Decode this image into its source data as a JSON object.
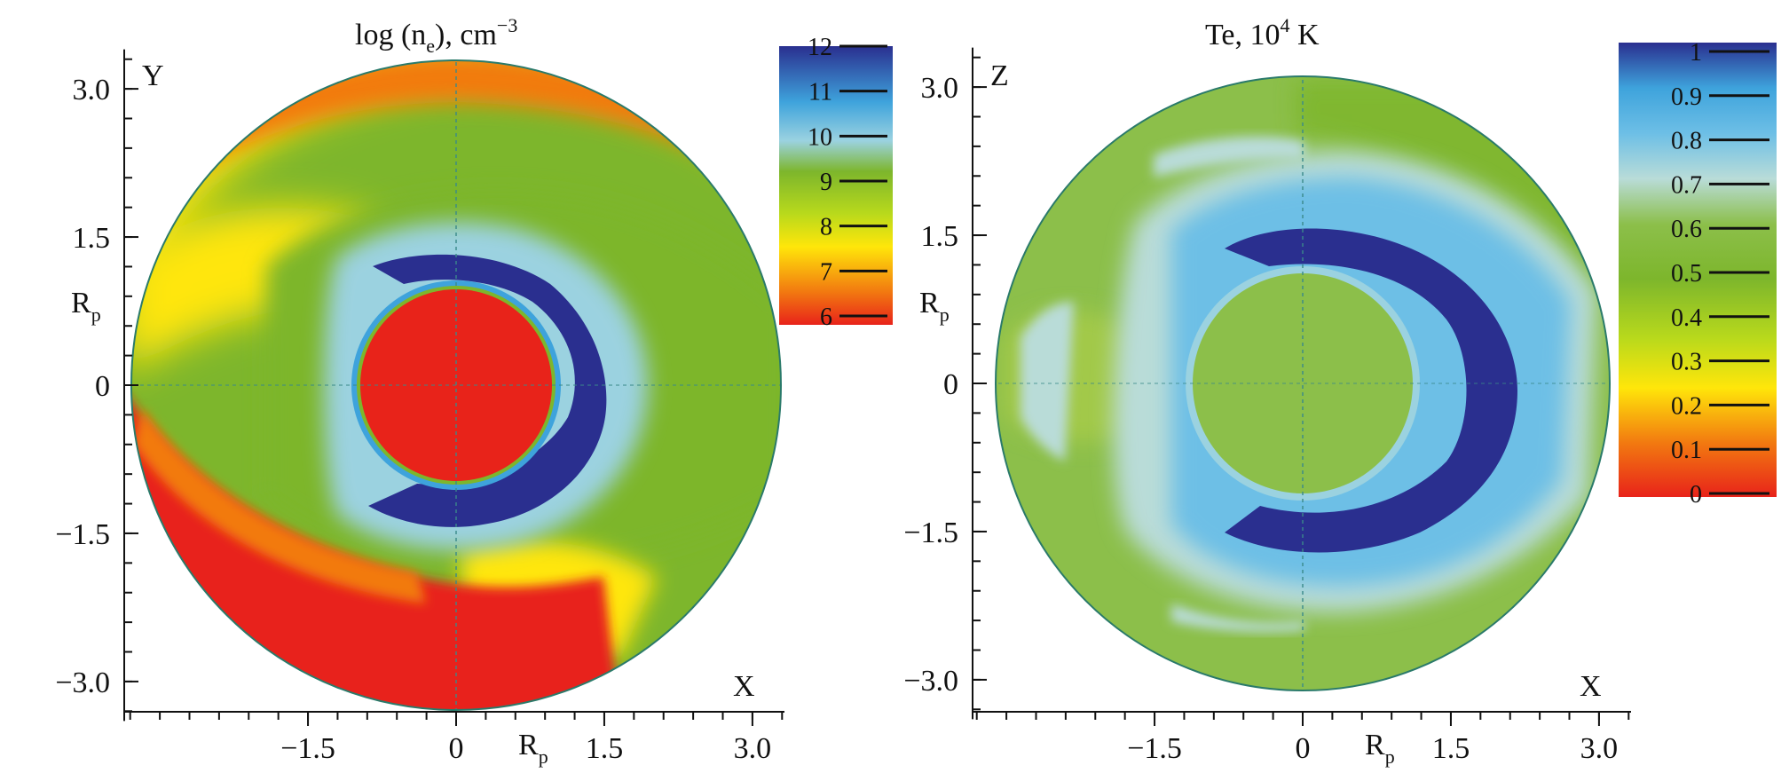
{
  "chart_data": [
    {
      "type": "heatmap",
      "title": "log (n_e), cm^-3",
      "title_parts": {
        "main": "log (n",
        "subscript": "e",
        "tail": "), cm",
        "superscript": "−3"
      },
      "x_axis_name": "X",
      "y_axis_name": "Y",
      "x_unit": "R",
      "x_unit_subscript": "p",
      "y_unit": "R",
      "y_unit_subscript": "p",
      "xlim": [
        -3.4,
        3.4
      ],
      "ylim": [
        -3.4,
        3.4
      ],
      "x_ticks": [
        {
          "value": -1.5,
          "label": "−1.5"
        },
        {
          "value": 0,
          "label": "0"
        },
        {
          "value": 1.5,
          "label": "1.5"
        },
        {
          "value": 3.0,
          "label": "3.0"
        }
      ],
      "y_ticks": [
        {
          "value": 3.0,
          "label": "3.0"
        },
        {
          "value": 1.5,
          "label": "1.5"
        },
        {
          "value": 0,
          "label": "0"
        },
        {
          "value": -1.5,
          "label": "−1.5"
        },
        {
          "value": -3.0,
          "label": "−3.0"
        }
      ],
      "domain_radius": 3.2,
      "colorbar": {
        "min": 6,
        "max": 12,
        "ticks": [
          {
            "value": 12,
            "label": "12"
          },
          {
            "value": 11,
            "label": "11"
          },
          {
            "value": 10,
            "label": "10"
          },
          {
            "value": 9,
            "label": "9"
          },
          {
            "value": 8,
            "label": "8"
          },
          {
            "value": 7,
            "label": "7"
          },
          {
            "value": 6,
            "label": "6"
          }
        ],
        "colors": [
          "#e8231a",
          "#f27a10",
          "#ffe60a",
          "#b8d91c",
          "#7db62c",
          "#9bd2e0",
          "#3ea3dc",
          "#2a2f8f"
        ]
      },
      "grid": false,
      "legend": "colorbar right of plot"
    },
    {
      "type": "heatmap",
      "title": "Te, 10^4 K",
      "title_parts": {
        "main": "Te, 10",
        "superscript": "4",
        "tail": " K"
      },
      "x_axis_name": "X",
      "y_axis_name": "Z",
      "x_unit": "R",
      "x_unit_subscript": "p",
      "y_unit": "R",
      "y_unit_subscript": "p",
      "xlim": [
        -3.4,
        3.4
      ],
      "ylim": [
        -3.4,
        3.4
      ],
      "x_ticks": [
        {
          "value": -1.5,
          "label": "−1.5"
        },
        {
          "value": 0,
          "label": "0"
        },
        {
          "value": 1.5,
          "label": "1.5"
        },
        {
          "value": 3.0,
          "label": "3.0"
        }
      ],
      "y_ticks": [
        {
          "value": 3.0,
          "label": "3.0"
        },
        {
          "value": 1.5,
          "label": "1.5"
        },
        {
          "value": 0,
          "label": "0"
        },
        {
          "value": -1.5,
          "label": "−1.5"
        },
        {
          "value": -3.0,
          "label": "−3.0"
        }
      ],
      "domain_radius": 3.1,
      "colorbar": {
        "min": 0,
        "max": 1,
        "ticks": [
          {
            "value": 1,
            "label": "1"
          },
          {
            "value": 0.9,
            "label": "0.9"
          },
          {
            "value": 0.8,
            "label": "0.8"
          },
          {
            "value": 0.7,
            "label": "0.7"
          },
          {
            "value": 0.6,
            "label": "0.6"
          },
          {
            "value": 0.5,
            "label": "0.5"
          },
          {
            "value": 0.4,
            "label": "0.4"
          },
          {
            "value": 0.3,
            "label": "0.3"
          },
          {
            "value": 0.2,
            "label": "0.2"
          },
          {
            "value": 0.1,
            "label": "0.1"
          },
          {
            "value": 0,
            "label": "0"
          }
        ],
        "colors": [
          "#e8231a",
          "#f27a10",
          "#ffe60a",
          "#b8d91c",
          "#7db62c",
          "#8cbf4a",
          "#b9dcd8",
          "#6dbfe6",
          "#3ea3dc",
          "#2a2f8f"
        ]
      },
      "grid": false,
      "legend": "colorbar right of plot"
    }
  ]
}
